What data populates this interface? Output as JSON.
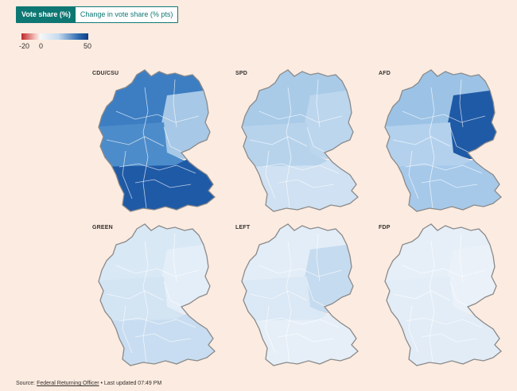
{
  "tabs": [
    {
      "label": "Vote share (%)",
      "active": true
    },
    {
      "label": "Change in vote share (% pts)",
      "active": false
    }
  ],
  "legend": {
    "ticks": [
      "-20",
      "0",
      "50"
    ],
    "colors": {
      "negative": "#c0262b",
      "zero": "#f7f7f7",
      "max": "#0b3d83"
    }
  },
  "panels": [
    {
      "label": "CDU/CSU",
      "north": "#3d7ec2",
      "mid": "#4d8cca",
      "south": "#1f5aa6",
      "east": "#a7c8e6"
    },
    {
      "label": "SPD",
      "north": "#a9cbe8",
      "mid": "#b7d3ec",
      "south": "#cfe1f2",
      "east": "#bcd6ee"
    },
    {
      "label": "AFD",
      "north": "#9cc3e6",
      "mid": "#b3d1ed",
      "south": "#a6c9ea",
      "east": "#1f5aa6"
    },
    {
      "label": "GREEN",
      "north": "#d9e8f5",
      "mid": "#d3e4f3",
      "south": "#c8ddf1",
      "east": "#e4eef8"
    },
    {
      "label": "LEFT",
      "north": "#e2edf7",
      "mid": "#dbe8f5",
      "south": "#e6eff8",
      "east": "#c5dbef"
    },
    {
      "label": "FDP",
      "north": "#e6eff8",
      "mid": "#e3edf7",
      "south": "#e1ecf7",
      "east": "#eaf1f9"
    }
  ],
  "source": {
    "prefix": "Source: ",
    "link": "Federal Returning Officer",
    "suffix": " • Last updated 07:49 PM"
  }
}
